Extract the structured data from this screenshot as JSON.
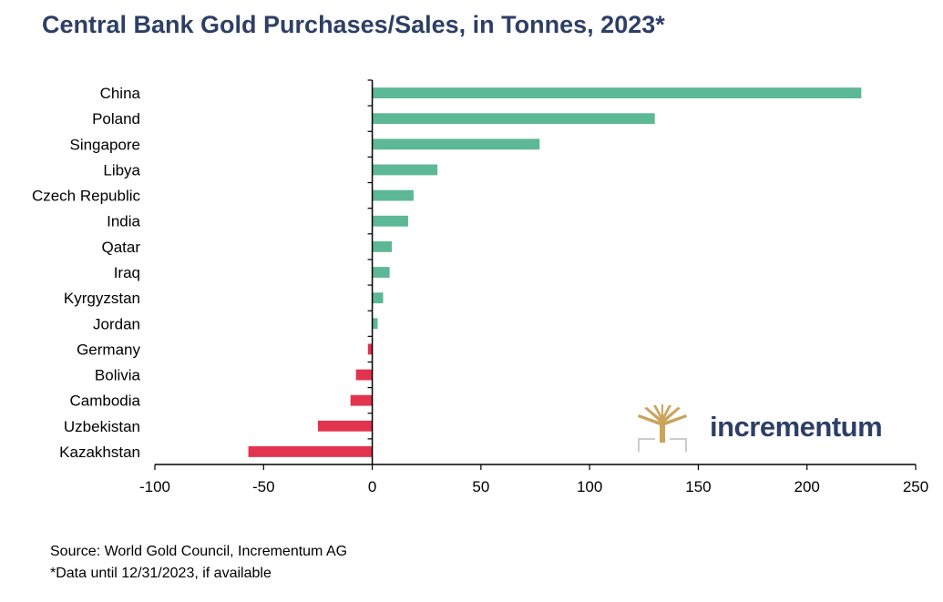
{
  "title": "Central Bank Gold Purchases/Sales, in Tonnes, 2023*",
  "footer": {
    "source": "Source: World Gold Council, Incrementum AG",
    "note": "*Data until 12/31/2023, if available"
  },
  "brand": {
    "name": "incrementum",
    "logo_icon": "tree-logo-icon"
  },
  "colors": {
    "positive": "#5cb895",
    "negative": "#e2334f",
    "title": "#2e3f66",
    "logo_gold": "#c9a45a"
  },
  "chart_data": {
    "type": "bar",
    "orientation": "horizontal",
    "title": "Central Bank Gold Purchases/Sales, in Tonnes, 2023*",
    "categories": [
      "China",
      "Poland",
      "Singapore",
      "Libya",
      "Czech Republic",
      "India",
      "Qatar",
      "Iraq",
      "Kyrgyzstan",
      "Jordan",
      "Germany",
      "Bolivia",
      "Cambodia",
      "Uzbekistan",
      "Kazakhstan"
    ],
    "values": [
      225,
      130,
      77,
      30,
      19,
      16.5,
      9,
      8,
      5,
      2.5,
      -2,
      -7.5,
      -10,
      -25,
      -57
    ],
    "xlim": [
      -100,
      250
    ],
    "xticks": [
      -100,
      -50,
      0,
      50,
      100,
      150,
      200,
      250
    ],
    "xlabel": "",
    "ylabel": "",
    "grid": false,
    "legend": "none"
  }
}
